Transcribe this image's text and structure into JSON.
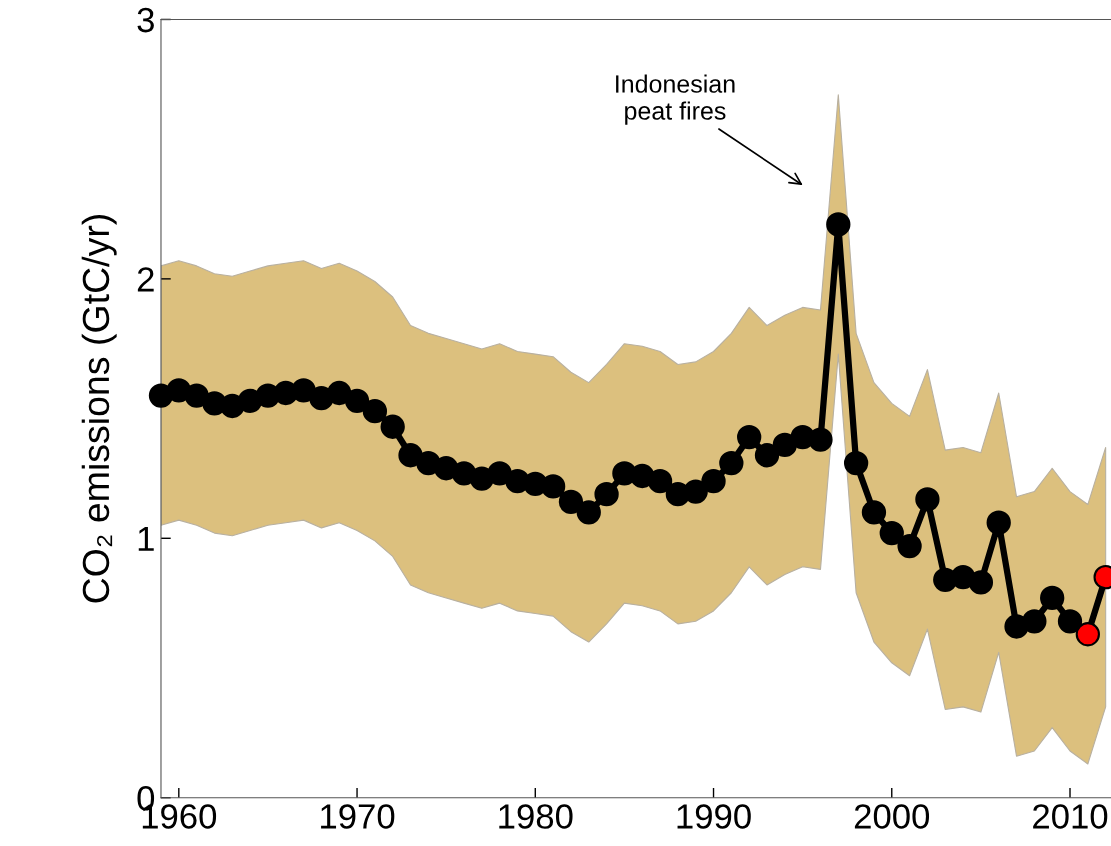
{
  "chart_data": {
    "type": "line",
    "ylabel": "CO₂ emissions (GtC/yr)",
    "x": [
      1959,
      1960,
      1961,
      1962,
      1963,
      1964,
      1965,
      1966,
      1967,
      1968,
      1969,
      1970,
      1971,
      1972,
      1973,
      1974,
      1975,
      1976,
      1977,
      1978,
      1979,
      1980,
      1981,
      1982,
      1983,
      1984,
      1985,
      1986,
      1987,
      1988,
      1989,
      1990,
      1991,
      1992,
      1993,
      1994,
      1995,
      1996,
      1997,
      1998,
      1999,
      2000,
      2001,
      2002,
      2003,
      2004,
      2005,
      2006,
      2007,
      2008,
      2009,
      2010,
      2011,
      2012
    ],
    "series": [
      {
        "color": "#000000",
        "colors": [
          "#000000",
          "#000000",
          "#000000",
          "#000000",
          "#000000",
          "#000000",
          "#000000",
          "#000000",
          "#000000",
          "#000000",
          "#000000",
          "#000000",
          "#000000",
          "#000000",
          "#000000",
          "#000000",
          "#000000",
          "#000000",
          "#000000",
          "#000000",
          "#000000",
          "#000000",
          "#000000",
          "#000000",
          "#000000",
          "#000000",
          "#000000",
          "#000000",
          "#000000",
          "#000000",
          "#000000",
          "#000000",
          "#000000",
          "#000000",
          "#000000",
          "#000000",
          "#000000",
          "#000000",
          "#000000",
          "#000000",
          "#000000",
          "#000000",
          "#000000",
          "#000000",
          "#000000",
          "#000000",
          "#000000",
          "#000000",
          "#000000",
          "#000000",
          "#000000",
          "#000000",
          "#ff0000",
          "#ff0000"
        ],
        "values": [
          1.55,
          1.57,
          1.55,
          1.52,
          1.51,
          1.53,
          1.55,
          1.56,
          1.57,
          1.54,
          1.56,
          1.53,
          1.49,
          1.43,
          1.32,
          1.29,
          1.27,
          1.25,
          1.23,
          1.25,
          1.22,
          1.21,
          1.2,
          1.14,
          1.1,
          1.17,
          1.25,
          1.24,
          1.22,
          1.17,
          1.18,
          1.22,
          1.29,
          1.39,
          1.32,
          1.36,
          1.39,
          1.38,
          2.21,
          1.29,
          1.1,
          1.02,
          0.97,
          1.15,
          0.84,
          0.85,
          0.83,
          1.06,
          0.66,
          0.68,
          0.77,
          0.68,
          0.63,
          0.85
        ],
        "lower": [
          1.05,
          1.07,
          1.05,
          1.02,
          1.01,
          1.03,
          1.05,
          1.06,
          1.07,
          1.04,
          1.06,
          1.03,
          0.99,
          0.93,
          0.82,
          0.79,
          0.77,
          0.75,
          0.73,
          0.75,
          0.72,
          0.71,
          0.7,
          0.64,
          0.6,
          0.67,
          0.75,
          0.74,
          0.72,
          0.67,
          0.68,
          0.72,
          0.79,
          0.89,
          0.82,
          0.86,
          0.89,
          0.88,
          1.71,
          0.79,
          0.6,
          0.52,
          0.47,
          0.65,
          0.34,
          0.35,
          0.33,
          0.56,
          0.16,
          0.18,
          0.27,
          0.18,
          0.13,
          0.35
        ],
        "upper": [
          2.05,
          2.07,
          2.05,
          2.02,
          2.01,
          2.03,
          2.05,
          2.06,
          2.07,
          2.04,
          2.06,
          2.03,
          1.99,
          1.93,
          1.82,
          1.79,
          1.77,
          1.75,
          1.73,
          1.75,
          1.72,
          1.71,
          1.7,
          1.64,
          1.6,
          1.67,
          1.75,
          1.74,
          1.72,
          1.67,
          1.68,
          1.72,
          1.79,
          1.89,
          1.82,
          1.86,
          1.89,
          1.88,
          2.71,
          1.79,
          1.6,
          1.52,
          1.47,
          1.65,
          1.34,
          1.35,
          1.33,
          1.56,
          1.16,
          1.18,
          1.27,
          1.18,
          1.13,
          1.35
        ]
      }
    ],
    "xlim": [
      1959,
      2012.3
    ],
    "xticks": [
      1960,
      1970,
      1980,
      1990,
      2000,
      2010
    ],
    "ylim": [
      0,
      3
    ],
    "yticks": [
      0,
      1,
      2,
      3
    ],
    "grid": false,
    "marker": "circle",
    "line_style": "solid",
    "annotations": [
      "Indonesian\npeat fires"
    ]
  }
}
